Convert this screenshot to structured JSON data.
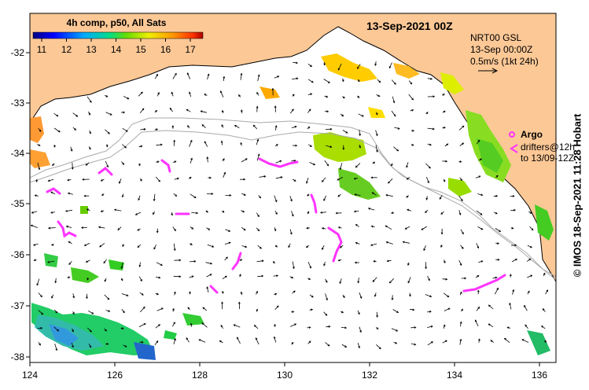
{
  "title": "13-Sep-2021 00Z",
  "colorbar": {
    "label": "4h comp, p50, All Sats",
    "ticks": [
      "11",
      "12",
      "13",
      "14",
      "15",
      "16",
      "17"
    ]
  },
  "info": {
    "line1": "NRT00 GSL",
    "line2": "13-Sep 00:00Z",
    "line3": "0.5m/s (1kt 24h)"
  },
  "legend": {
    "argo_label": "Argo",
    "drifters_line1": "drifters@12h",
    "drifters_line2": "to 13/09-12Z"
  },
  "credit": "© IMOS 18-Sep-2021 11:28 Hobart",
  "axes": {
    "x_ticks": [
      "124",
      "126",
      "128",
      "130",
      "132",
      "134",
      "136"
    ],
    "y_ticks": [
      "-32",
      "-33",
      "-34",
      "-35",
      "-36",
      "-37",
      "-38"
    ]
  },
  "colors": {
    "land": "#fcc896",
    "argo": "#ff33ff",
    "contour": "#aaaaaa"
  },
  "chart_data": {
    "type": "map",
    "xlim": [
      124,
      136.5
    ],
    "ylim": [
      -38.1,
      -31.4
    ],
    "sst_colorscale": [
      11,
      17
    ],
    "sst_patches": [
      {
        "lon": 124.6,
        "lat": -37.5,
        "sst": 14.0
      },
      {
        "lon": 125.2,
        "lat": -37.8,
        "sst": 13.5
      },
      {
        "lon": 126.0,
        "lat": -37.6,
        "sst": 14.3
      },
      {
        "lon": 126.5,
        "lat": -37.9,
        "sst": 13.0
      },
      {
        "lon": 124.1,
        "lat": -33.4,
        "sst": 16.0
      },
      {
        "lon": 124.3,
        "lat": -33.9,
        "sst": 16.2
      },
      {
        "lon": 131.4,
        "lat": -33.9,
        "sst": 15.2
      },
      {
        "lon": 131.6,
        "lat": -34.7,
        "sst": 14.6
      },
      {
        "lon": 131.5,
        "lat": -32.3,
        "sst": 15.8
      },
      {
        "lon": 133.9,
        "lat": -32.6,
        "sst": 15.5
      },
      {
        "lon": 134.7,
        "lat": -34.0,
        "sst": 14.8
      },
      {
        "lon": 136.2,
        "lat": -35.4,
        "sst": 14.5
      }
    ]
  }
}
